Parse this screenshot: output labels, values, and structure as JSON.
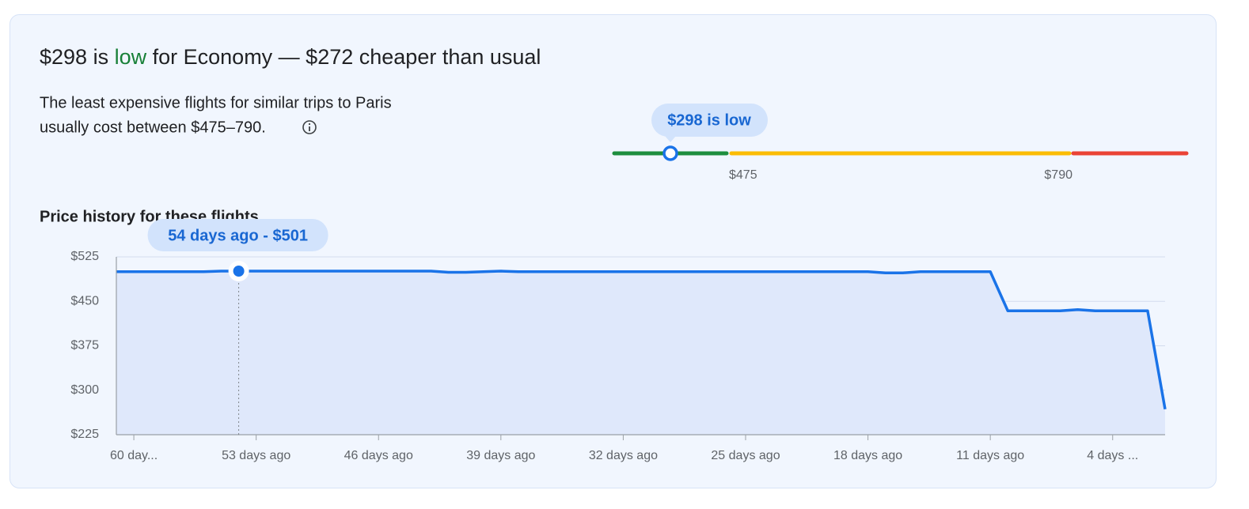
{
  "header": {
    "title_start": "$298 is",
    "title_highlight": "low",
    "title_end": "for Economy — $272 cheaper than usual",
    "description": [
      "The least expensive flights for similar trips to Paris",
      "usually cost between $475–790."
    ]
  },
  "range": {
    "current": 298,
    "current_label": "$298 is low",
    "ticks": [
      {
        "value": 475,
        "label": "$475"
      },
      {
        "value": 790,
        "label": "$790"
      }
    ],
    "colors": [
      "#1e8e3e",
      "#fbbc04",
      "#ea4335"
    ]
  },
  "chart_data": {
    "type": "area",
    "title": "Price history for these flights",
    "x": [
      61,
      60,
      59,
      58,
      57,
      56,
      55,
      54,
      53,
      52,
      51,
      50,
      49,
      48,
      47,
      46,
      45,
      44,
      43,
      42,
      41,
      40,
      39,
      38,
      37,
      36,
      35,
      34,
      33,
      32,
      31,
      30,
      29,
      28,
      27,
      26,
      25,
      24,
      23,
      22,
      21,
      20,
      19,
      18,
      17,
      16,
      15,
      14,
      13,
      12,
      11,
      10,
      9,
      8,
      7,
      6,
      5,
      4,
      3,
      2,
      1
    ],
    "series": [
      {
        "color": "#1a73e8",
        "values": [
          500,
          500,
          500,
          500,
          500,
          500,
          501,
          501,
          501,
          501,
          501,
          501,
          501,
          501,
          501,
          501,
          501,
          501,
          501,
          499,
          499,
          500,
          501,
          500,
          500,
          500,
          500,
          500,
          500,
          500,
          500,
          500,
          500,
          500,
          500,
          500,
          500,
          500,
          500,
          500,
          500,
          500,
          500,
          500,
          498,
          498,
          500,
          500,
          500,
          500,
          500,
          434,
          434,
          434,
          434,
          436,
          434,
          434,
          434,
          434,
          268
        ]
      }
    ],
    "xlim": [
      61,
      1
    ],
    "ylim": [
      225,
      525
    ],
    "xticks": [
      {
        "value": 60,
        "label": "60 day..."
      },
      {
        "value": 53,
        "label": "53 days ago"
      },
      {
        "value": 46,
        "label": "46 days ago"
      },
      {
        "value": 39,
        "label": "39 days ago"
      },
      {
        "value": 32,
        "label": "32 days ago"
      },
      {
        "value": 25,
        "label": "25 days ago"
      },
      {
        "value": 18,
        "label": "18 days ago"
      },
      {
        "value": 11,
        "label": "11 days ago"
      },
      {
        "value": 4,
        "label": "4 days ..."
      }
    ],
    "yticks": [
      {
        "value": 225,
        "label": "$225"
      },
      {
        "value": 300,
        "label": "$300"
      },
      {
        "value": 375,
        "label": "$375"
      },
      {
        "value": 450,
        "label": "$450"
      },
      {
        "value": 525,
        "label": "$525"
      }
    ],
    "grid": true,
    "tooltip": {
      "index": 7,
      "label": "54 days ago - $501"
    }
  }
}
